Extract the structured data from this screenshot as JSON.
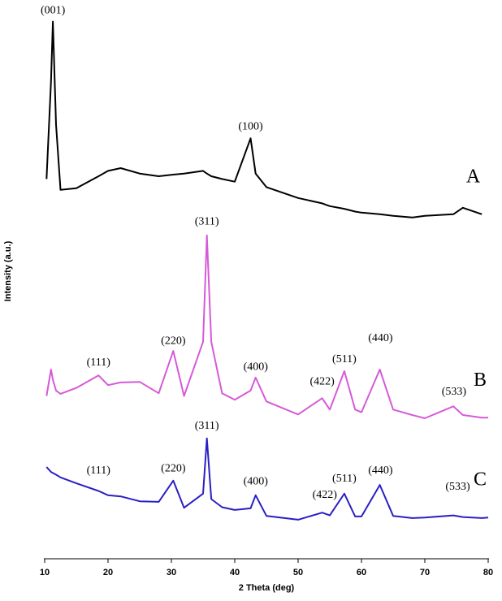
{
  "chart_data": {
    "type": "line",
    "xlabel": "2 Theta (deg)",
    "ylabel": "Intensity (a.u.)",
    "xlim": [
      10,
      80
    ],
    "xticks": [
      10,
      20,
      30,
      40,
      50,
      60,
      70,
      80
    ],
    "ylim": [
      0,
      102
    ],
    "x": [
      10.3,
      11,
      11.3,
      11.8,
      12.5,
      15,
      18.5,
      20,
      22,
      25,
      28,
      30.3,
      32,
      35,
      35.6,
      36.3,
      38,
      40,
      42.5,
      43.3,
      45,
      50,
      53.8,
      55,
      57.3,
      59,
      60,
      62.9,
      65,
      68,
      70,
      74.5,
      76,
      79,
      80
    ],
    "series": [
      {
        "name": "A",
        "color": "#000000",
        "values": [
          70,
          88,
          99,
          80,
          68,
          68.3,
          70.5,
          71.5,
          72,
          71,
          70.5,
          70.8,
          71,
          71.5,
          71,
          70.5,
          70,
          69.5,
          77.5,
          71,
          68.5,
          66.5,
          65.5,
          65,
          64.5,
          64,
          63.8,
          63.5,
          63.2,
          62.9,
          63.2,
          63.5,
          64.7,
          63.5,
          null
        ]
      },
      {
        "name": "B",
        "color": "#d65ad8",
        "values": [
          30,
          34.9,
          33,
          31,
          30.4,
          31.5,
          33.8,
          32,
          32.5,
          32.6,
          30.5,
          38.3,
          30,
          40,
          59.6,
          40,
          30.5,
          29.3,
          31,
          33.4,
          29,
          26.6,
          29.6,
          27.5,
          34.6,
          27.5,
          27,
          34.9,
          27.5,
          26.5,
          25.9,
          28.1,
          26.5,
          26,
          26
        ]
      },
      {
        "name": "C",
        "color": "#2a1fc4",
        "values": [
          16.9,
          16,
          15.8,
          15.5,
          15,
          13.9,
          12.5,
          11.7,
          11.5,
          10.6,
          10.5,
          14.4,
          9.4,
          12,
          22.2,
          11,
          9.5,
          9,
          9.3,
          11.7,
          7.9,
          7.2,
          8.5,
          8,
          12,
          7.8,
          7.8,
          13.6,
          7.9,
          7.5,
          7.6,
          8,
          7.7,
          7.5,
          7.6
        ]
      }
    ],
    "annotations": [
      {
        "text": "(001)",
        "x": 11.3,
        "y": 101
      },
      {
        "text": "(100)",
        "x": 42.5,
        "y": 79.6
      },
      {
        "text": "(311)",
        "x": 35.6,
        "y": 62.1
      },
      {
        "text": "(220)",
        "x": 30.3,
        "y": 40.1
      },
      {
        "text": "(111)",
        "x": 18.5,
        "y": 36.1
      },
      {
        "text": "(400)",
        "x": 43.3,
        "y": 35.3
      },
      {
        "text": "(422)",
        "x": 53.8,
        "y": 32.6
      },
      {
        "text": "(511)",
        "x": 57.3,
        "y": 36.7
      },
      {
        "text": "(440)",
        "x": 63,
        "y": 40.6
      },
      {
        "text": "(533)",
        "x": 74.6,
        "y": 30.7
      },
      {
        "text": "(311)",
        "x": 35.6,
        "y": 24.4
      },
      {
        "text": "(111)",
        "x": 18.5,
        "y": 16.2
      },
      {
        "text": "(220)",
        "x": 30.3,
        "y": 16.6
      },
      {
        "text": "(400)",
        "x": 43.3,
        "y": 14.2
      },
      {
        "text": "(422)",
        "x": 54.2,
        "y": 11.7
      },
      {
        "text": "(511)",
        "x": 57.3,
        "y": 14.7
      },
      {
        "text": "(440)",
        "x": 63,
        "y": 16.2
      },
      {
        "text": "(533)",
        "x": 75.2,
        "y": 13.2
      }
    ]
  }
}
